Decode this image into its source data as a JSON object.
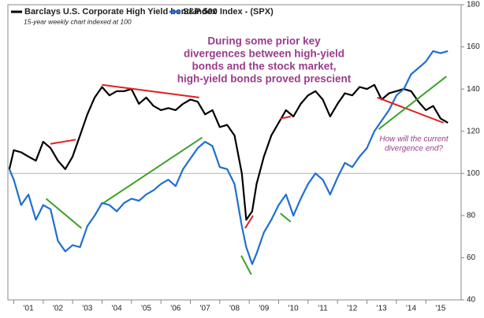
{
  "chart_data": {
    "type": "line",
    "legend_labels_note": null,
    "subtitle": "15-year weekly chart indexed at 100",
    "x": [
      2000.85,
      2001,
      2001.25,
      2001.5,
      2001.75,
      2002,
      2002.25,
      2002.5,
      2002.75,
      2003,
      2003.25,
      2003.5,
      2003.75,
      2004,
      2004.25,
      2004.5,
      2004.75,
      2005,
      2005.25,
      2005.5,
      2005.75,
      2006,
      2006.25,
      2006.5,
      2006.75,
      2007,
      2007.25,
      2007.5,
      2007.75,
      2008,
      2008.25,
      2008.5,
      2008.75,
      2008.9,
      2009.1,
      2009.25,
      2009.5,
      2009.75,
      2010,
      2010.25,
      2010.5,
      2010.75,
      2011,
      2011.25,
      2011.5,
      2011.75,
      2012,
      2012.25,
      2012.5,
      2012.75,
      2013,
      2013.25,
      2013.5,
      2013.75,
      2014,
      2014.25,
      2014.5,
      2014.75,
      2015,
      2015.25,
      2015.5,
      2015.75
    ],
    "series": [
      {
        "name": "Barclays U.S. Corporate High Yield bond index",
        "color": "#000000",
        "values": [
          102,
          111,
          110,
          108,
          106,
          115,
          112,
          106,
          102,
          108,
          118,
          128,
          136,
          141,
          137,
          139,
          139,
          140,
          133,
          136,
          132,
          130,
          131,
          130,
          133,
          135,
          134,
          128,
          130,
          122,
          123,
          118,
          100,
          78,
          82,
          95,
          108,
          118,
          124,
          130,
          127,
          133,
          137,
          139,
          135,
          127,
          133,
          138,
          137,
          141,
          140,
          142,
          135,
          138,
          139,
          140,
          139,
          134,
          130,
          132,
          126,
          124
        ]
      },
      {
        "name": "S&P 500 Index - (SPX)",
        "color": "#1f6fd1",
        "values": [
          102,
          97,
          85,
          90,
          78,
          85,
          83,
          68,
          63,
          66,
          65,
          75,
          80,
          86,
          85,
          82,
          86,
          88,
          87,
          90,
          92,
          95,
          97,
          94,
          102,
          107,
          112,
          115,
          113,
          103,
          102,
          95,
          75,
          65,
          57,
          62,
          72,
          78,
          85,
          90,
          80,
          88,
          95,
          100,
          97,
          90,
          98,
          105,
          103,
          108,
          112,
          120,
          125,
          130,
          137,
          140,
          147,
          150,
          153,
          158,
          157,
          158
        ]
      }
    ],
    "xlim": [
      2000.8,
      2016.2
    ],
    "xticks": [
      {
        "value": 2001,
        "label": "'01"
      },
      {
        "value": 2002,
        "label": "'02"
      },
      {
        "value": 2003,
        "label": "'03"
      },
      {
        "value": 2004,
        "label": "'04"
      },
      {
        "value": 2005,
        "label": "'05"
      },
      {
        "value": 2006,
        "label": "'06"
      },
      {
        "value": 2007,
        "label": "'07"
      },
      {
        "value": 2008,
        "label": "'08"
      },
      {
        "value": 2009,
        "label": "'09"
      },
      {
        "value": 2010,
        "label": "'10"
      },
      {
        "value": 2011,
        "label": "'11"
      },
      {
        "value": 2012,
        "label": "'12"
      },
      {
        "value": 2013,
        "label": "'13"
      },
      {
        "value": 2014,
        "label": "'14"
      },
      {
        "value": 2015,
        "label": "'15"
      }
    ],
    "ylim": [
      40,
      180
    ],
    "yticks": [
      40,
      60,
      80,
      100,
      120,
      140,
      160,
      180
    ],
    "reference_line": 100,
    "trendlines": [
      {
        "color": "#e02020",
        "x": [
          2002.25,
          2003.1
        ],
        "y": [
          114,
          116
        ]
      },
      {
        "color": "#e02020",
        "x": [
          2004.0,
          2007.3
        ],
        "y": [
          142,
          136
        ]
      },
      {
        "color": "#e02020",
        "x": [
          2008.86,
          2009.13
        ],
        "y": [
          74,
          80
        ]
      },
      {
        "color": "#e02020",
        "x": [
          2010.06,
          2010.41
        ],
        "y": [
          126,
          127
        ]
      },
      {
        "color": "#e02020",
        "x": [
          2013.35,
          2015.6
        ],
        "y": [
          136,
          124
        ]
      },
      {
        "color": "#3fa02a",
        "x": [
          2002.1,
          2003.3
        ],
        "y": [
          88,
          74
        ]
      },
      {
        "color": "#3fa02a",
        "x": [
          2004.05,
          2007.4
        ],
        "y": [
          86,
          117
        ]
      },
      {
        "color": "#3fa02a",
        "x": [
          2008.73,
          2009.07
        ],
        "y": [
          61,
          52
        ]
      },
      {
        "color": "#3fa02a",
        "x": [
          2010.06,
          2010.41
        ],
        "y": [
          81,
          77
        ]
      },
      {
        "color": "#3fa02a",
        "x": [
          2013.4,
          2015.7
        ],
        "y": [
          121,
          146
        ]
      }
    ],
    "annotations": [
      {
        "lines": [
          "During some prior key",
          "divergences between high-yield",
          "bonds and the stock market,",
          "high-yield bonds proved prescient"
        ]
      },
      {
        "lines": [
          "How will the current",
          "divergence end?"
        ]
      }
    ]
  }
}
